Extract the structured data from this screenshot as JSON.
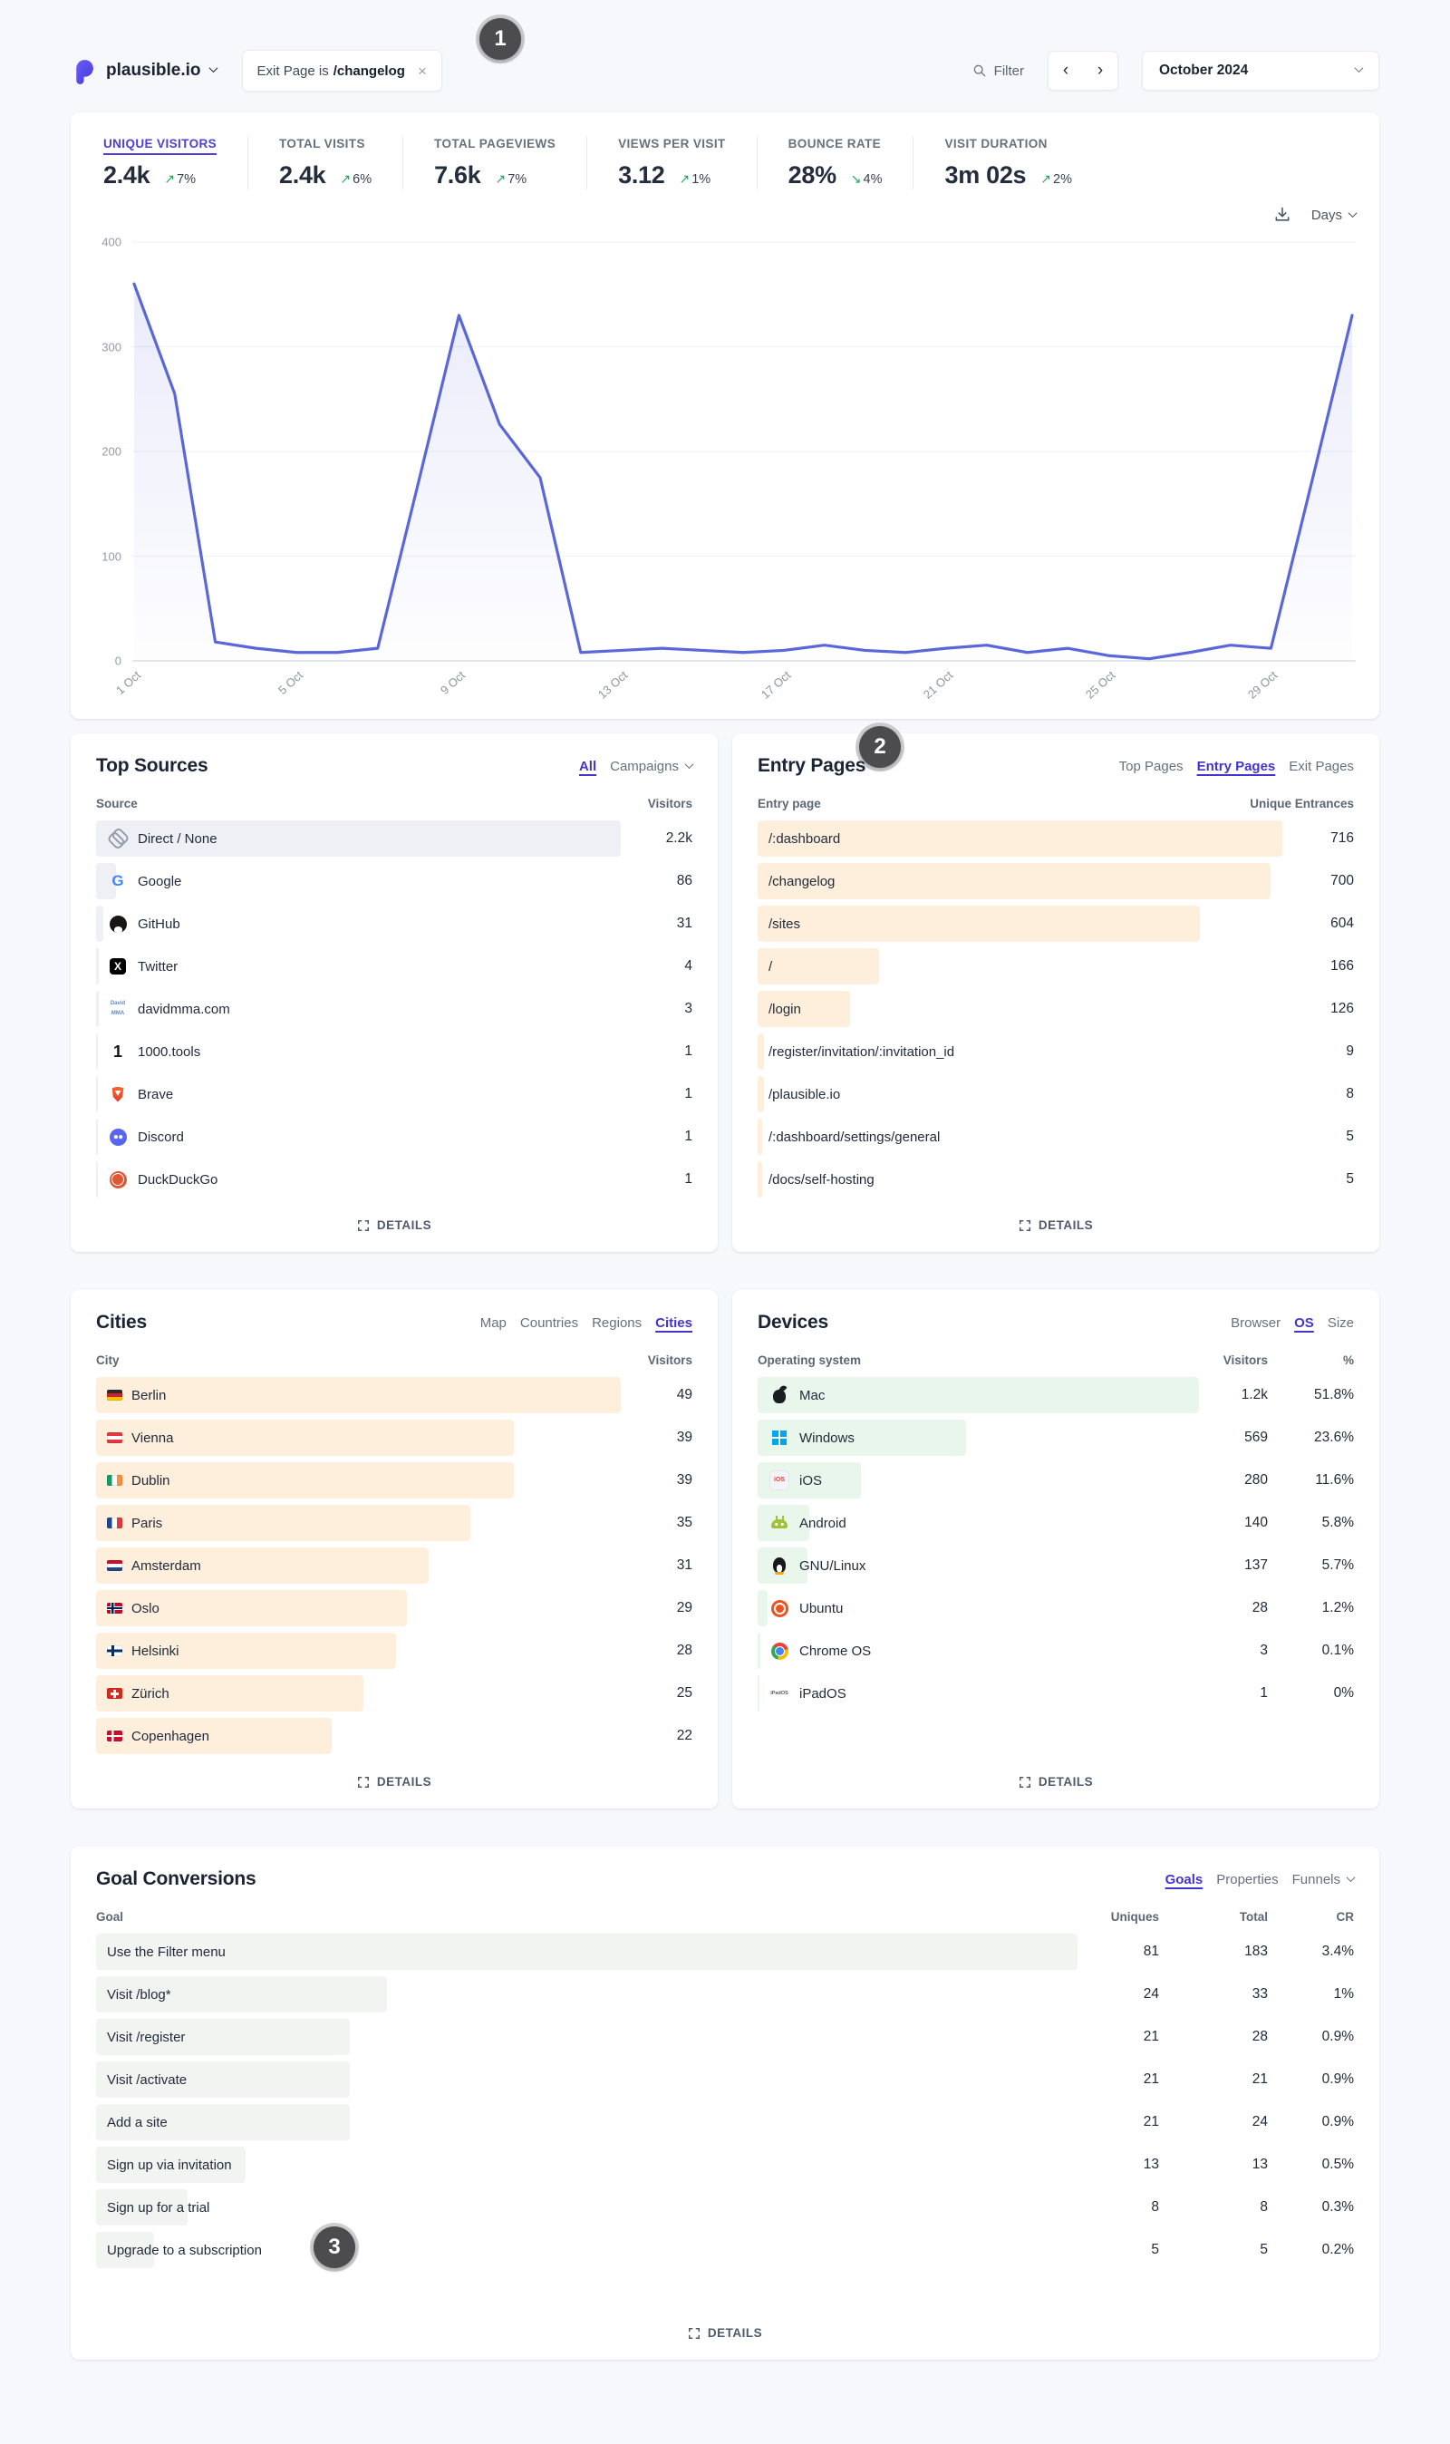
{
  "header": {
    "site_name": "plausible.io",
    "filter_chip_prefix": "Exit Page is",
    "filter_chip_value": "/changelog",
    "filter_chip_close": "×",
    "filter_label": "Filter",
    "prev_arrow": "‹",
    "next_arrow": "›",
    "date_range": "October 2024"
  },
  "annotations": [
    "1",
    "2",
    "3"
  ],
  "stats": [
    {
      "label": "UNIQUE VISITORS",
      "value": "2.4k",
      "arrow": "↗",
      "change": "7%"
    },
    {
      "label": "TOTAL VISITS",
      "value": "2.4k",
      "arrow": "↗",
      "change": "6%"
    },
    {
      "label": "TOTAL PAGEVIEWS",
      "value": "7.6k",
      "arrow": "↗",
      "change": "7%"
    },
    {
      "label": "VIEWS PER VISIT",
      "value": "3.12",
      "arrow": "↗",
      "change": "1%"
    },
    {
      "label": "BOUNCE RATE",
      "value": "28%",
      "arrow": "↘",
      "change": "4%"
    },
    {
      "label": "VISIT DURATION",
      "value": "3m 02s",
      "arrow": "↗",
      "change": "2%"
    }
  ],
  "graph_controls": {
    "interval": "Days"
  },
  "chart_data": {
    "type": "line",
    "metric": "UNIQUE VISITORS",
    "interval": "Days",
    "categories": [
      "1 Oct",
      "2 Oct",
      "3 Oct",
      "4 Oct",
      "5 Oct",
      "6 Oct",
      "7 Oct",
      "8 Oct",
      "9 Oct",
      "10 Oct",
      "11 Oct",
      "12 Oct",
      "13 Oct",
      "14 Oct",
      "15 Oct",
      "16 Oct",
      "17 Oct",
      "18 Oct",
      "19 Oct",
      "20 Oct",
      "21 Oct",
      "22 Oct",
      "23 Oct",
      "24 Oct",
      "25 Oct",
      "26 Oct",
      "27 Oct",
      "28 Oct",
      "29 Oct",
      "30 Oct",
      "31 Oct"
    ],
    "values": [
      360,
      255,
      18,
      12,
      8,
      8,
      12,
      170,
      330,
      226,
      175,
      8,
      10,
      12,
      10,
      8,
      10,
      15,
      10,
      8,
      12,
      15,
      8,
      12,
      5,
      2,
      8,
      15,
      12,
      170,
      330
    ],
    "ylim": [
      0,
      400
    ],
    "y_ticks": [
      0,
      100,
      200,
      300,
      400
    ],
    "x_tick_every": 4,
    "x_tick_labels_shown": [
      "1 Oct",
      "5 Oct",
      "9 Oct",
      "13 Oct",
      "17 Oct",
      "21 Oct",
      "25 Oct",
      "29 Oct"
    ],
    "grid": true,
    "line_color": "#5a67d8",
    "fill_color_top": "rgba(90,103,216,0.13)",
    "fill_color_bottom": "rgba(90,103,216,0.01)"
  },
  "panels": {
    "top_sources": {
      "title": "Top Sources",
      "tabs": [
        {
          "label": "All",
          "cls": "active"
        },
        {
          "label": "Campaigns",
          "cls": "has-chev"
        }
      ],
      "columns": [
        "Source",
        "Visitors"
      ],
      "rows": [
        {
          "icon": "link-icon",
          "label": "Direct / None",
          "value": "2.2k",
          "bar": 88
        },
        {
          "icon": "google-icon",
          "label": "Google",
          "value": "86",
          "bar": 3.4
        },
        {
          "icon": "github-icon",
          "label": "GitHub",
          "value": "31",
          "bar": 1.2
        },
        {
          "icon": "x-twitter-icon",
          "label": "Twitter",
          "value": "4",
          "bar": 0.5
        },
        {
          "icon": "davidmma-icon",
          "label": "davidmma.com",
          "value": "3",
          "bar": 0.4
        },
        {
          "icon": "tools-icon",
          "label": "1000.tools",
          "value": "1",
          "bar": 0.3
        },
        {
          "icon": "brave-icon",
          "label": "Brave",
          "value": "1",
          "bar": 0.3
        },
        {
          "icon": "discord-icon",
          "label": "Discord",
          "value": "1",
          "bar": 0.3
        },
        {
          "icon": "duckduckgo-icon",
          "label": "DuckDuckGo",
          "value": "1",
          "bar": 0.3
        }
      ]
    },
    "entry_pages": {
      "title": "Entry Pages",
      "tabs": [
        {
          "label": "Top Pages",
          "cls": ""
        },
        {
          "label": "Entry Pages",
          "cls": "active"
        },
        {
          "label": "Exit Pages",
          "cls": ""
        }
      ],
      "columns": [
        "Entry page",
        "Unique Entrances"
      ],
      "rows": [
        {
          "label": "/:dashboard",
          "value": "716",
          "bar": 88
        },
        {
          "label": "/changelog",
          "value": "700",
          "bar": 86
        },
        {
          "label": "/sites",
          "value": "604",
          "bar": 74.2
        },
        {
          "label": "/",
          "value": "166",
          "bar": 20.4
        },
        {
          "label": "/login",
          "value": "126",
          "bar": 15.5
        },
        {
          "label": "/register/invitation/:invitation_id",
          "value": "9",
          "bar": 1.1
        },
        {
          "label": "/plausible.io",
          "value": "8",
          "bar": 1.0
        },
        {
          "label": "/:dashboard/settings/general",
          "value": "5",
          "bar": 0.8
        },
        {
          "label": "/docs/self-hosting",
          "value": "5",
          "bar": 0.8
        }
      ]
    },
    "cities": {
      "title": "Cities",
      "tabs": [
        {
          "label": "Map",
          "cls": ""
        },
        {
          "label": "Countries",
          "cls": ""
        },
        {
          "label": "Regions",
          "cls": ""
        },
        {
          "label": "Cities",
          "cls": "active"
        }
      ],
      "columns": [
        "City",
        "Visitors"
      ],
      "rows": [
        {
          "flag": "flag-de",
          "label": "Berlin",
          "value": "49",
          "bar": 88
        },
        {
          "flag": "flag-at",
          "label": "Vienna",
          "value": "39",
          "bar": 70
        },
        {
          "flag": "flag-ie",
          "label": "Dublin",
          "value": "39",
          "bar": 70
        },
        {
          "flag": "flag-fr",
          "label": "Paris",
          "value": "35",
          "bar": 62.8
        },
        {
          "flag": "flag-nl",
          "label": "Amsterdam",
          "value": "31",
          "bar": 55.7
        },
        {
          "flag": "flag-no",
          "label": "Oslo",
          "value": "29",
          "bar": 52.1
        },
        {
          "flag": "flag-fi",
          "label": "Helsinki",
          "value": "28",
          "bar": 50.3
        },
        {
          "flag": "flag-ch",
          "label": "Zürich",
          "value": "25",
          "bar": 44.9
        },
        {
          "flag": "flag-dk",
          "label": "Copenhagen",
          "value": "22",
          "bar": 39.5
        }
      ]
    },
    "devices": {
      "title": "Devices",
      "tabs": [
        {
          "label": "Browser",
          "cls": ""
        },
        {
          "label": "OS",
          "cls": "active"
        },
        {
          "label": "Size",
          "cls": ""
        }
      ],
      "columns": [
        "Operating system",
        "Visitors",
        "%"
      ],
      "rows": [
        {
          "icon": "apple-icon",
          "label": "Mac",
          "visitors": "1.2k",
          "pct": "51.8%",
          "bar": 74
        },
        {
          "icon": "windows-icon",
          "label": "Windows",
          "visitors": "569",
          "pct": "23.6%",
          "bar": 35
        },
        {
          "icon": "ios-icon",
          "label": "iOS",
          "visitors": "280",
          "pct": "11.6%",
          "bar": 17.3
        },
        {
          "icon": "android-icon",
          "label": "Android",
          "visitors": "140",
          "pct": "5.8%",
          "bar": 8.6
        },
        {
          "icon": "linux-icon",
          "label": "GNU/Linux",
          "visitors": "137",
          "pct": "5.7%",
          "bar": 8.4
        },
        {
          "icon": "ubuntu-icon",
          "label": "Ubuntu",
          "visitors": "28",
          "pct": "1.2%",
          "bar": 1.7
        },
        {
          "icon": "chromeos-icon",
          "label": "Chrome OS",
          "visitors": "3",
          "pct": "0.1%",
          "bar": 0.5
        },
        {
          "icon": "ipados-icon",
          "label": "iPadOS",
          "visitors": "1",
          "pct": "0%",
          "bar": 0.3
        }
      ]
    },
    "goals": {
      "title": "Goal Conversions",
      "tabs": [
        {
          "label": "Goals",
          "cls": "active"
        },
        {
          "label": "Properties",
          "cls": ""
        },
        {
          "label": "Funnels",
          "cls": "has-chev"
        }
      ],
      "columns": [
        "Goal",
        "Uniques",
        "Total",
        "CR"
      ],
      "rows": [
        {
          "label": "Use the Filter menu",
          "uniques": "81",
          "total": "183",
          "cr": "3.4%",
          "bar": 78
        },
        {
          "label": "Visit /blog*",
          "uniques": "24",
          "total": "33",
          "cr": "1%",
          "bar": 23.1
        },
        {
          "label": "Visit /register",
          "uniques": "21",
          "total": "28",
          "cr": "0.9%",
          "bar": 20.2
        },
        {
          "label": "Visit /activate",
          "uniques": "21",
          "total": "21",
          "cr": "0.9%",
          "bar": 20.2
        },
        {
          "label": "Add a site",
          "uniques": "21",
          "total": "24",
          "cr": "0.9%",
          "bar": 20.2
        },
        {
          "label": "Sign up via invitation",
          "uniques": "13",
          "total": "13",
          "cr": "0.5%",
          "bar": 11.9
        },
        {
          "label": "Sign up for a trial",
          "uniques": "8",
          "total": "8",
          "cr": "0.3%",
          "bar": 7.3
        },
        {
          "label": "Upgrade to a subscription",
          "uniques": "5",
          "total": "5",
          "cr": "0.2%",
          "bar": 4.6
        }
      ]
    }
  },
  "details_label": "DETAILS",
  "colors": {
    "accent": "#4b40d8",
    "chart_line": "#5a67d8",
    "positive_green": "#1fa45e",
    "sources_bar": "#eef0f6",
    "pages_bar": "#fdefdc",
    "devices_bar": "#e9f6ec",
    "goals_bar": "#f2f4f1",
    "badge_bg": "#4c4c4e",
    "page_bg": "#f6f8fb"
  }
}
